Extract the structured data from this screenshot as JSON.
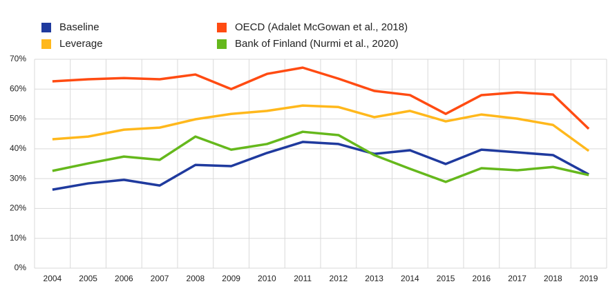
{
  "chart_data": {
    "type": "line",
    "categories": [
      "2004",
      "2005",
      "2006",
      "2007",
      "2008",
      "2009",
      "2010",
      "2011",
      "2012",
      "2013",
      "2014",
      "2015",
      "2016",
      "2017",
      "2018",
      "2019"
    ],
    "series": [
      {
        "name": "Baseline",
        "color": "#1f3a9e",
        "values": [
          26.3,
          28.4,
          29.6,
          27.7,
          34.6,
          34.2,
          38.6,
          42.3,
          41.6,
          38.3,
          39.5,
          34.9,
          39.7,
          38.8,
          37.9,
          31.4
        ]
      },
      {
        "name": "Leverage",
        "color": "#ffb81c",
        "values": [
          43.2,
          44.1,
          46.4,
          47.1,
          49.9,
          51.7,
          52.7,
          54.5,
          54.0,
          50.6,
          52.7,
          49.2,
          51.5,
          50.1,
          48.0,
          39.3
        ]
      },
      {
        "name": "OECD (Adalet McGowan et al., 2018)",
        "color": "#ff4b12",
        "values": [
          62.6,
          63.3,
          63.7,
          63.3,
          64.9,
          60.0,
          65.1,
          67.2,
          63.5,
          59.4,
          58.0,
          51.7,
          58.0,
          58.9,
          58.2,
          46.7
        ]
      },
      {
        "name": "Bank of Finland (Nurmi et al., 2020)",
        "color": "#65b81c",
        "values": [
          32.6,
          35.1,
          37.4,
          36.3,
          44.1,
          39.7,
          41.6,
          45.7,
          44.6,
          37.9,
          33.3,
          28.9,
          33.5,
          32.8,
          33.9,
          31.2
        ]
      }
    ],
    "ylim": [
      0,
      70
    ],
    "yticks": [
      {
        "value": 0,
        "label": "0%"
      },
      {
        "value": 10,
        "label": "10%"
      },
      {
        "value": 20,
        "label": "20%"
      },
      {
        "value": 30,
        "label": "30%"
      },
      {
        "value": 40,
        "label": "40%"
      },
      {
        "value": 50,
        "label": "50%"
      },
      {
        "value": 60,
        "label": "60%"
      },
      {
        "value": 70,
        "label": "70%"
      }
    ],
    "grid": true
  }
}
